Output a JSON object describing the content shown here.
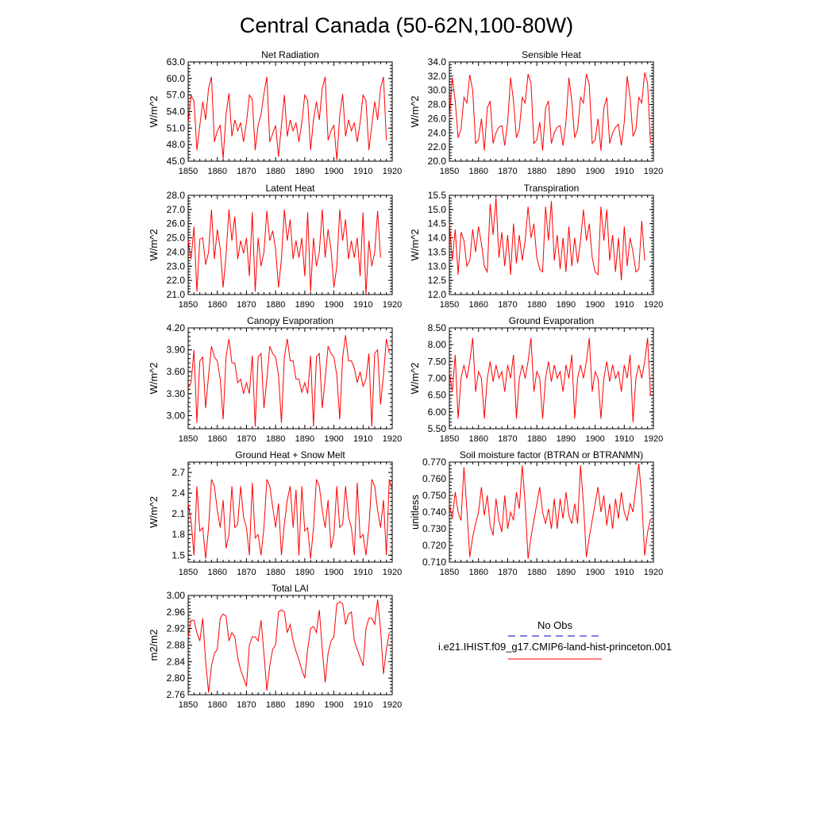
{
  "title": "Central Canada (50-62N,100-80W)",
  "colors": {
    "model_line": "#ff0000",
    "obs_line": "#0000cd",
    "axis": "#000000"
  },
  "x_ticks": [
    "1850",
    "1860",
    "1870",
    "1880",
    "1890",
    "1900",
    "1910",
    "1920"
  ],
  "legend": {
    "obs_label": "No Obs",
    "model_label": "i.e21.IHIST.f09_g17.CMIP6-land-hist-princeton.001"
  },
  "chart_data": [
    {
      "type": "line",
      "title": "Net Radiation",
      "ylabel": "W/m^2",
      "xlim": [
        1850,
        1920
      ],
      "ylim": [
        45.0,
        63.0
      ],
      "y_ticks": [
        "45.0",
        "48.0",
        "51.0",
        "54.0",
        "57.0",
        "60.0",
        "63.0"
      ],
      "x_start": 1850,
      "series": [
        {
          "values": [
            52.0,
            56.8,
            56.0,
            47.0,
            51.5,
            55.8,
            52.5,
            58.2,
            60.3,
            48.5,
            50.5,
            51.5,
            45.5,
            53.5,
            57.3,
            49.5,
            52.5,
            50.5,
            52.0,
            48.5,
            52.0,
            57.0,
            56.2,
            47.0,
            51.5,
            53.5,
            57.3,
            60.3,
            48.5,
            50.0,
            51.5,
            45.8,
            51.5,
            57.0,
            49.5,
            52.5,
            50.5,
            52.0,
            48.5,
            52.0,
            57.0,
            56.0,
            47.0,
            52.5,
            55.8,
            52.5,
            58.2,
            60.3,
            48.8,
            50.5,
            51.5,
            45.2,
            53.3,
            57.2,
            49.5,
            52.5,
            50.5,
            52.0,
            48.5,
            52.0,
            57.0,
            56.0,
            47.0,
            51.5,
            55.8,
            52.5,
            58.2,
            60.3,
            48.8
          ]
        }
      ]
    },
    {
      "type": "line",
      "title": "Sensible Heat",
      "ylabel": "W/m^2",
      "xlim": [
        1850,
        1920
      ],
      "ylim": [
        20.0,
        34.0
      ],
      "y_ticks": [
        "20.0",
        "22.0",
        "24.0",
        "26.0",
        "28.0",
        "30.0",
        "32.0",
        "34.0"
      ],
      "x_start": 1850,
      "series": [
        {
          "values": [
            26.0,
            31.8,
            28.5,
            23.3,
            24.5,
            29.0,
            28.2,
            32.2,
            30.0,
            22.5,
            23.0,
            26.0,
            21.5,
            27.5,
            28.5,
            22.5,
            24.0,
            24.8,
            25.0,
            22.2,
            25.5,
            31.8,
            28.5,
            23.3,
            24.5,
            29.0,
            28.2,
            32.3,
            31.0,
            22.5,
            23.0,
            25.5,
            21.5,
            27.5,
            28.5,
            22.5,
            24.0,
            24.8,
            25.0,
            22.2,
            25.5,
            31.8,
            28.5,
            23.3,
            24.5,
            29.0,
            28.2,
            32.3,
            30.8,
            22.5,
            23.0,
            26.0,
            21.5,
            27.5,
            29.0,
            22.5,
            24.0,
            24.8,
            25.2,
            22.2,
            25.5,
            32.0,
            29.0,
            23.5,
            24.5,
            29.0,
            28.2,
            32.5,
            31.0,
            22.5
          ]
        }
      ]
    },
    {
      "type": "line",
      "title": "Latent Heat",
      "ylabel": "W/m^2",
      "xlim": [
        1850,
        1920
      ],
      "ylim": [
        21.0,
        28.0
      ],
      "y_ticks": [
        "21.0",
        "22.0",
        "23.0",
        "24.0",
        "25.0",
        "26.0",
        "27.0",
        "28.0"
      ],
      "x_start": 1850,
      "series": [
        {
          "values": [
            24.8,
            23.5,
            25.8,
            21.2,
            24.9,
            25.0,
            23.1,
            24.0,
            27.0,
            23.5,
            25.6,
            24.2,
            21.5,
            23.8,
            27.0,
            24.8,
            26.5,
            23.5,
            24.8,
            23.9,
            25.0,
            22.3,
            26.8,
            21.2,
            25.0,
            23.0,
            24.0,
            26.9,
            24.8,
            25.5,
            24.2,
            21.5,
            23.5,
            27.0,
            24.8,
            26.3,
            23.5,
            24.8,
            23.6,
            25.0,
            22.3,
            26.8,
            21.2,
            25.0,
            23.0,
            24.0,
            27.0,
            23.6,
            25.6,
            24.2,
            21.5,
            23.0,
            27.0,
            24.8,
            26.3,
            23.5,
            24.8,
            23.6,
            25.0,
            22.3,
            26.8,
            21.0,
            24.8,
            23.0,
            24.0,
            26.9,
            23.6
          ]
        }
      ]
    },
    {
      "type": "line",
      "title": "Transpiration",
      "ylabel": "W/m^2",
      "xlim": [
        1850,
        1920
      ],
      "ylim": [
        12.0,
        15.5
      ],
      "y_ticks": [
        "12.0",
        "12.5",
        "13.0",
        "13.5",
        "14.0",
        "14.5",
        "15.0",
        "15.5"
      ],
      "x_start": 1850,
      "series": [
        {
          "values": [
            14.5,
            13.2,
            14.3,
            12.7,
            14.2,
            13.9,
            13.0,
            13.2,
            14.3,
            13.5,
            14.4,
            13.8,
            13.0,
            12.8,
            15.2,
            14.1,
            15.4,
            13.3,
            14.2,
            13.0,
            14.1,
            12.7,
            14.5,
            13.1,
            14.1,
            13.2,
            13.9,
            15.1,
            14.0,
            14.5,
            13.3,
            12.9,
            12.8,
            15.1,
            13.9,
            15.3,
            13.2,
            14.1,
            12.9,
            14.0,
            12.8,
            14.4,
            13.0,
            14.0,
            13.1,
            13.9,
            15.0,
            13.9,
            14.5,
            13.3,
            12.8,
            12.7,
            15.1,
            13.9,
            15.0,
            13.2,
            14.1,
            12.8,
            14.0,
            12.5,
            14.4,
            13.0,
            14.0,
            13.5,
            12.8,
            12.9,
            14.6,
            13.2
          ]
        }
      ]
    },
    {
      "type": "line",
      "title": "Canopy Evaporation",
      "ylabel": "W/m^2",
      "xlim": [
        1850,
        1920
      ],
      "ylim": [
        2.82,
        4.2
      ],
      "y_ticks": [
        "3.00",
        "3.30",
        "3.60",
        "3.90",
        "4.20"
      ],
      "x_start": 1850,
      "series": [
        {
          "values": [
            3.38,
            3.45,
            3.9,
            2.9,
            3.75,
            3.8,
            3.1,
            3.55,
            3.95,
            3.8,
            3.75,
            3.5,
            2.95,
            3.8,
            4.05,
            3.72,
            3.72,
            3.45,
            3.5,
            3.3,
            3.45,
            3.3,
            3.82,
            2.85,
            3.8,
            3.85,
            3.1,
            3.5,
            3.95,
            3.85,
            3.8,
            3.55,
            2.9,
            3.8,
            4.05,
            3.75,
            3.75,
            3.5,
            3.5,
            3.32,
            3.45,
            3.3,
            3.82,
            2.85,
            3.8,
            3.85,
            3.1,
            3.5,
            3.95,
            3.85,
            3.8,
            3.55,
            2.95,
            3.8,
            4.1,
            3.75,
            3.75,
            3.65,
            3.45,
            3.6,
            3.4,
            3.5,
            3.85,
            2.85,
            3.85,
            3.9,
            3.15,
            3.55,
            4.05,
            3.85
          ]
        }
      ]
    },
    {
      "type": "line",
      "title": "Ground Evaporation",
      "ylabel": "W/m^2",
      "xlim": [
        1850,
        1920
      ],
      "ylim": [
        5.5,
        8.5
      ],
      "y_ticks": [
        "5.50",
        "6.00",
        "6.50",
        "7.00",
        "7.50",
        "8.00",
        "8.50"
      ],
      "x_start": 1850,
      "series": [
        {
          "values": [
            7.2,
            6.6,
            7.7,
            5.8,
            7.0,
            7.4,
            7.0,
            7.5,
            8.2,
            6.6,
            7.2,
            7.0,
            5.8,
            7.0,
            7.5,
            6.9,
            7.4,
            7.0,
            7.2,
            6.6,
            7.4,
            7.0,
            7.7,
            5.8,
            7.0,
            7.4,
            7.0,
            7.5,
            8.2,
            6.6,
            7.2,
            7.0,
            5.8,
            7.0,
            7.5,
            6.9,
            7.4,
            7.0,
            7.2,
            6.6,
            7.4,
            7.0,
            7.7,
            5.8,
            7.0,
            7.4,
            7.0,
            7.5,
            8.2,
            6.6,
            7.2,
            7.0,
            5.8,
            7.0,
            7.5,
            6.9,
            7.4,
            7.0,
            7.2,
            6.6,
            7.4,
            7.0,
            7.7,
            5.7,
            7.0,
            7.4,
            7.0,
            7.5,
            8.2,
            6.5
          ]
        }
      ]
    },
    {
      "type": "line",
      "title": "Ground Heat + Snow Melt",
      "ylabel": "W/m^2",
      "xlim": [
        1850,
        1920
      ],
      "ylim": [
        1.4,
        2.85
      ],
      "y_ticks": [
        "1.5",
        "1.8",
        "2.1",
        "2.4",
        "2.7"
      ],
      "x_start": 1850,
      "series": [
        {
          "values": [
            2.25,
            2.0,
            1.5,
            2.5,
            1.85,
            1.9,
            1.45,
            1.9,
            2.6,
            2.5,
            2.15,
            1.9,
            2.3,
            1.6,
            1.8,
            2.5,
            1.9,
            1.95,
            2.5,
            2.05,
            1.9,
            1.5,
            2.55,
            1.75,
            1.8,
            1.5,
            1.9,
            2.6,
            2.5,
            2.2,
            1.9,
            2.25,
            1.5,
            1.95,
            2.3,
            2.5,
            1.9,
            2.45,
            1.5,
            2.5,
            1.85,
            1.9,
            1.45,
            1.9,
            2.6,
            2.5,
            2.15,
            1.9,
            2.3,
            1.6,
            1.8,
            2.5,
            1.9,
            1.95,
            2.5,
            2.05,
            1.9,
            1.5,
            2.55,
            1.75,
            1.8,
            1.5,
            1.9,
            2.6,
            2.5,
            2.15,
            1.9,
            2.3,
            1.5,
            2.6,
            2.45
          ]
        }
      ]
    },
    {
      "type": "line",
      "title": "Soil moisture factor (BTRAN or BTRANMN)",
      "ylabel": "unitless",
      "xlim": [
        1850,
        1920
      ],
      "ylim": [
        0.71,
        0.77
      ],
      "y_ticks": [
        "0.710",
        "0.720",
        "0.730",
        "0.740",
        "0.750",
        "0.760",
        "0.770"
      ],
      "x_start": 1850,
      "series": [
        {
          "values": [
            0.745,
            0.736,
            0.752,
            0.74,
            0.735,
            0.767,
            0.742,
            0.713,
            0.725,
            0.733,
            0.74,
            0.755,
            0.738,
            0.75,
            0.732,
            0.726,
            0.748,
            0.735,
            0.728,
            0.75,
            0.73,
            0.74,
            0.735,
            0.752,
            0.742,
            0.768,
            0.745,
            0.712,
            0.725,
            0.735,
            0.745,
            0.755,
            0.74,
            0.733,
            0.742,
            0.73,
            0.748,
            0.73,
            0.748,
            0.736,
            0.752,
            0.738,
            0.733,
            0.745,
            0.733,
            0.768,
            0.745,
            0.713,
            0.725,
            0.735,
            0.745,
            0.755,
            0.74,
            0.75,
            0.732,
            0.745,
            0.73,
            0.748,
            0.736,
            0.752,
            0.74,
            0.735,
            0.745,
            0.74,
            0.755,
            0.769,
            0.748,
            0.714,
            0.728,
            0.736
          ]
        }
      ]
    },
    {
      "type": "line",
      "title": "Total LAI",
      "ylabel": "m2/m2",
      "xlim": [
        1850,
        1920
      ],
      "ylim": [
        2.76,
        3.0
      ],
      "y_ticks": [
        "2.76",
        "2.80",
        "2.84",
        "2.88",
        "2.92",
        "2.96",
        "3.00"
      ],
      "x_start": 1850,
      "series": [
        {
          "values": [
            2.9,
            2.94,
            2.94,
            2.91,
            2.89,
            2.945,
            2.84,
            2.765,
            2.83,
            2.86,
            2.87,
            2.945,
            2.955,
            2.95,
            2.89,
            2.91,
            2.9,
            2.85,
            2.82,
            2.8,
            2.78,
            2.88,
            2.9,
            2.9,
            2.89,
            2.94,
            2.86,
            2.77,
            2.83,
            2.87,
            2.88,
            2.96,
            2.965,
            2.96,
            2.91,
            2.93,
            2.89,
            2.865,
            2.845,
            2.82,
            2.8,
            2.87,
            2.92,
            2.925,
            2.91,
            2.965,
            2.87,
            2.79,
            2.86,
            2.89,
            2.9,
            2.98,
            2.985,
            2.98,
            2.93,
            2.955,
            2.96,
            2.89,
            2.87,
            2.85,
            2.83,
            2.92,
            2.945,
            2.945,
            2.93,
            2.99,
            2.92,
            2.81,
            2.87,
            2.91
          ]
        }
      ]
    }
  ]
}
